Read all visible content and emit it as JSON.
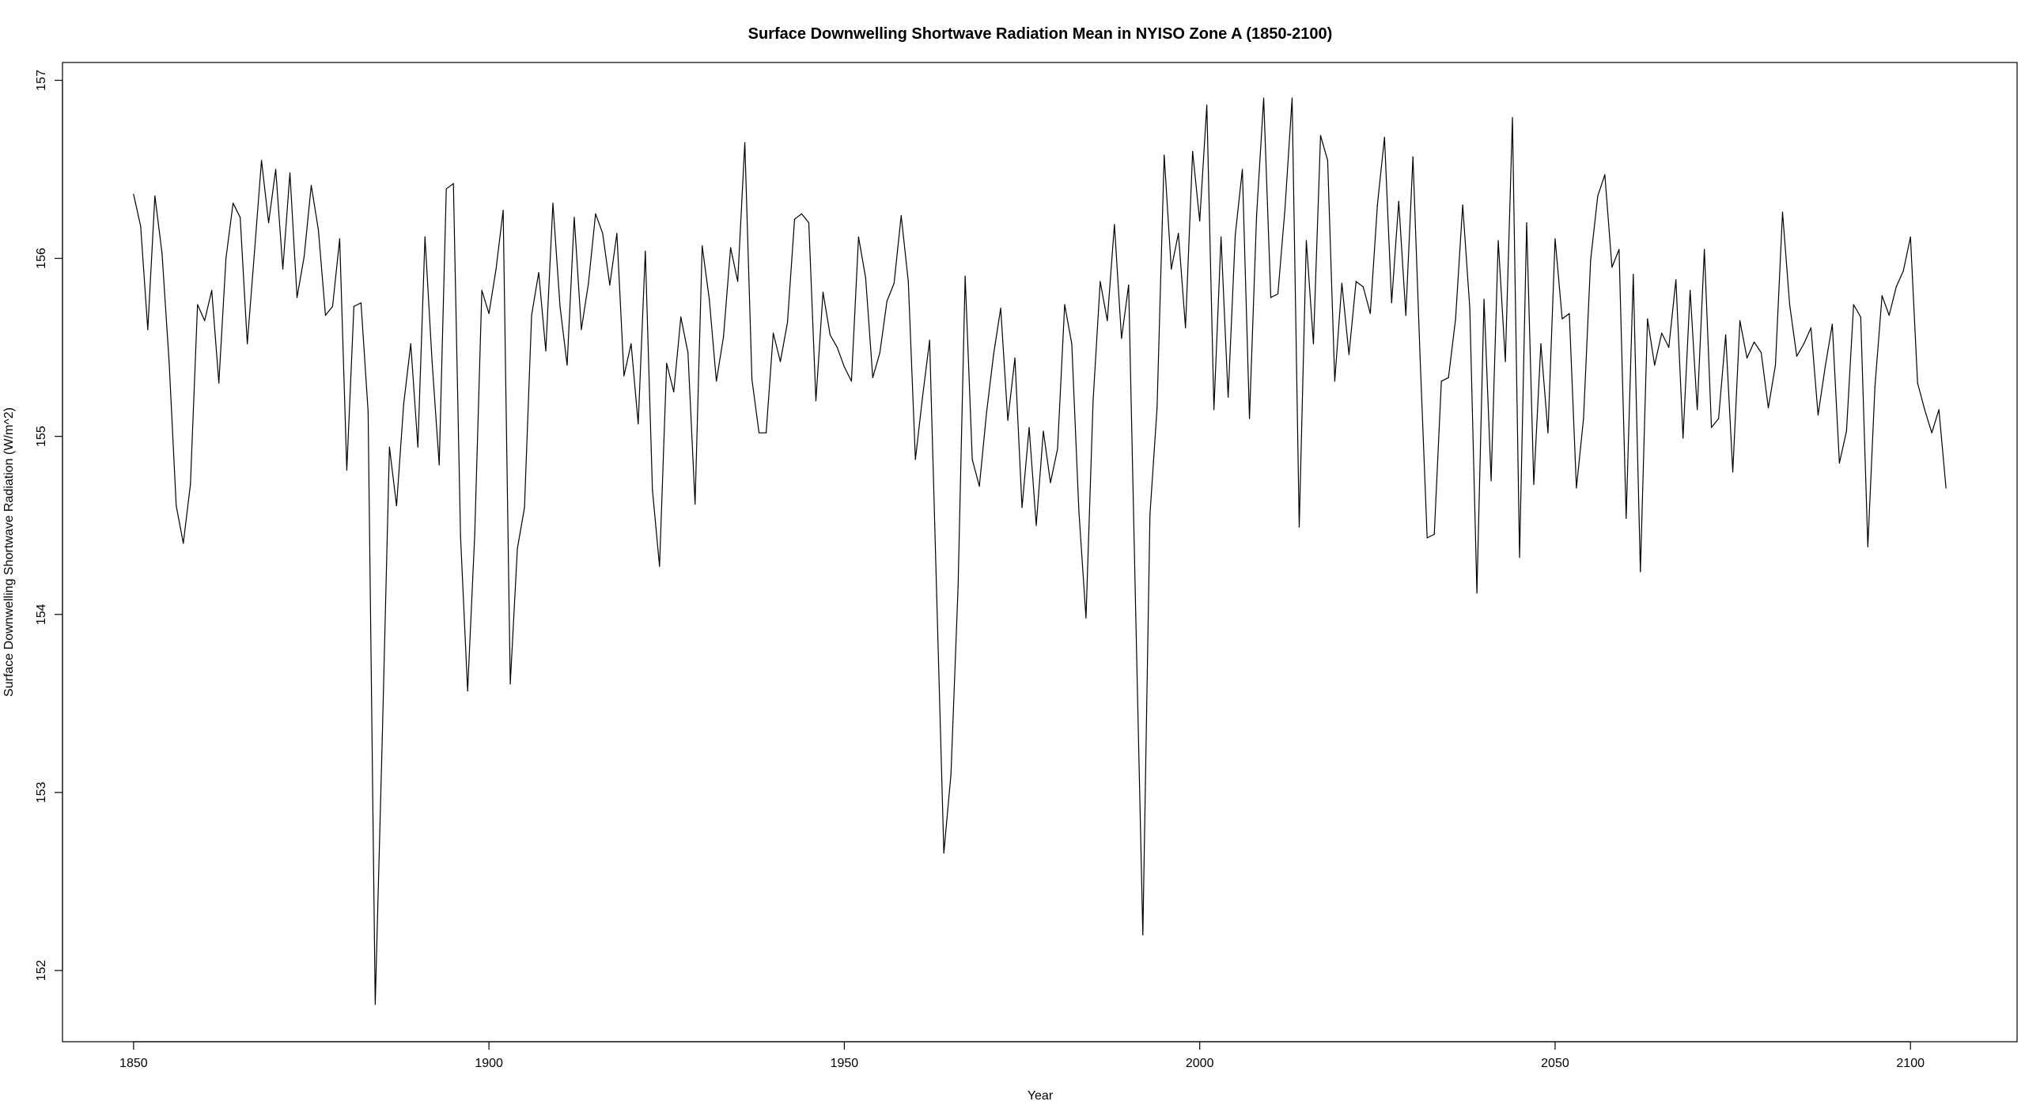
{
  "chart_data": {
    "type": "line",
    "title": "Surface Downwelling Shortwave Radiation Mean in NYISO Zone A (1850-2100)",
    "xlabel": "Year",
    "ylabel": "Surface Downwelling Shortwave Radiation (W/m^2)",
    "xlim": [
      1840,
      2115
    ],
    "ylim": [
      151.6,
      157.1
    ],
    "x_ticks": [
      1850,
      1900,
      1950,
      2000,
      2050,
      2100
    ],
    "y_ticks": [
      152,
      153,
      154,
      155,
      156,
      157
    ],
    "grid": false,
    "legend": "none",
    "line_color": "#000000",
    "series": [
      {
        "x_start": 1850,
        "x_step": 1,
        "values": [
          156.36,
          156.18,
          155.6,
          156.35,
          156.03,
          155.42,
          154.61,
          154.4,
          154.73,
          155.74,
          155.65,
          155.82,
          155.3,
          156.0,
          156.31,
          156.23,
          155.52,
          156.03,
          156.55,
          156.2,
          156.5,
          155.94,
          156.48,
          155.78,
          156.01,
          156.41,
          156.16,
          155.68,
          155.73,
          156.11,
          154.81,
          155.73,
          155.75,
          155.14,
          151.81,
          153.32,
          154.94,
          154.61,
          155.18,
          155.52,
          154.94,
          156.12,
          155.42,
          154.84,
          156.39,
          156.42,
          154.44,
          153.57,
          154.45,
          155.82,
          155.69,
          155.94,
          156.27,
          153.61,
          154.37,
          154.6,
          155.68,
          155.92,
          155.48,
          156.31,
          155.73,
          155.4,
          156.23,
          155.6,
          155.86,
          156.25,
          156.14,
          155.85,
          156.14,
          155.34,
          155.52,
          155.07,
          156.04,
          154.7,
          154.27,
          155.41,
          155.25,
          155.67,
          155.47,
          154.62,
          156.07,
          155.77,
          155.31,
          155.56,
          156.06,
          155.87,
          156.65,
          155.32,
          155.02,
          155.02,
          155.58,
          155.42,
          155.64,
          156.22,
          156.25,
          156.2,
          155.2,
          155.81,
          155.57,
          155.5,
          155.39,
          155.31,
          156.12,
          155.89,
          155.33,
          155.47,
          155.76,
          155.86,
          156.24,
          155.87,
          154.87,
          155.22,
          155.54,
          154.1,
          152.66,
          153.1,
          154.15,
          155.9,
          154.87,
          154.72,
          155.13,
          155.46,
          155.72,
          155.09,
          155.44,
          154.6,
          155.05,
          154.5,
          155.03,
          154.74,
          154.93,
          155.74,
          155.52,
          154.58,
          153.98,
          155.2,
          155.87,
          155.65,
          156.19,
          155.55,
          155.85,
          154.0,
          152.2,
          154.56,
          155.16,
          156.58,
          155.94,
          156.14,
          155.61,
          156.6,
          156.21,
          156.86,
          155.15,
          156.12,
          155.22,
          156.13,
          156.5,
          155.1,
          156.24,
          156.9,
          155.78,
          155.8,
          156.28,
          156.9,
          154.49,
          156.1,
          155.52,
          156.69,
          156.55,
          155.31,
          155.86,
          155.46,
          155.87,
          155.84,
          155.69,
          156.3,
          156.68,
          155.75,
          156.32,
          155.68,
          156.57,
          155.45,
          154.43,
          154.45,
          155.31,
          155.33,
          155.66,
          156.3,
          155.72,
          154.12,
          155.77,
          154.75,
          156.1,
          155.42,
          156.79,
          154.32,
          156.2,
          154.73,
          155.52,
          155.02,
          156.11,
          155.66,
          155.69,
          154.71,
          155.1,
          155.99,
          156.35,
          156.47,
          155.95,
          156.05,
          154.54,
          155.91,
          154.24,
          155.66,
          155.4,
          155.58,
          155.5,
          155.88,
          154.99,
          155.82,
          155.15,
          156.05,
          155.05,
          155.1,
          155.57,
          154.8,
          155.65,
          155.44,
          155.53,
          155.47,
          155.16,
          155.4,
          156.26,
          155.74,
          155.45,
          155.52,
          155.61,
          155.12,
          155.39,
          155.63,
          154.85,
          155.03,
          155.74,
          155.67,
          154.38,
          155.28,
          155.79,
          155.68,
          155.84,
          155.93,
          156.12,
          155.3,
          155.15,
          155.02,
          155.15,
          154.71
        ]
      }
    ]
  }
}
